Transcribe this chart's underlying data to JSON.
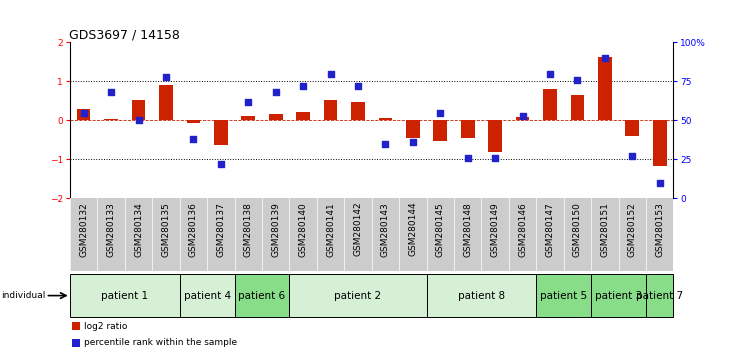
{
  "title": "GDS3697 / 14158",
  "samples": [
    "GSM280132",
    "GSM280133",
    "GSM280134",
    "GSM280135",
    "GSM280136",
    "GSM280137",
    "GSM280138",
    "GSM280139",
    "GSM280140",
    "GSM280141",
    "GSM280142",
    "GSM280143",
    "GSM280144",
    "GSM280145",
    "GSM280148",
    "GSM280149",
    "GSM280146",
    "GSM280147",
    "GSM280150",
    "GSM280151",
    "GSM280152",
    "GSM280153"
  ],
  "log2_ratio": [
    0.28,
    0.04,
    0.52,
    0.92,
    -0.07,
    -0.62,
    0.1,
    0.17,
    0.22,
    0.52,
    0.48,
    0.06,
    -0.45,
    -0.52,
    -0.45,
    -0.8,
    0.08,
    0.8,
    0.65,
    1.62,
    -0.4,
    -1.18
  ],
  "percentile": [
    55,
    68,
    50,
    78,
    38,
    22,
    62,
    68,
    72,
    80,
    72,
    35,
    36,
    55,
    26,
    26,
    53,
    80,
    76,
    90,
    27,
    10
  ],
  "patients": [
    {
      "label": "patient 1",
      "start": 0,
      "end": 4,
      "color": "#d5f0d5"
    },
    {
      "label": "patient 4",
      "start": 4,
      "end": 6,
      "color": "#d5f0d5"
    },
    {
      "label": "patient 6",
      "start": 6,
      "end": 8,
      "color": "#88dd88"
    },
    {
      "label": "patient 2",
      "start": 8,
      "end": 13,
      "color": "#d5f0d5"
    },
    {
      "label": "patient 8",
      "start": 13,
      "end": 17,
      "color": "#d5f0d5"
    },
    {
      "label": "patient 5",
      "start": 17,
      "end": 19,
      "color": "#88dd88"
    },
    {
      "label": "patient 3",
      "start": 19,
      "end": 21,
      "color": "#88dd88"
    },
    {
      "label": "patient 7",
      "start": 21,
      "end": 22,
      "color": "#88dd88"
    }
  ],
  "bar_color": "#cc2200",
  "dot_color": "#2222cc",
  "sample_bg_color": "#cccccc",
  "patient_border_color": "#000000",
  "bg_color": "#ffffff",
  "ylim": [
    -2,
    2
  ],
  "y2lim": [
    0,
    100
  ],
  "y2ticks": [
    0,
    25,
    50,
    75,
    100
  ],
  "y2ticklabels": [
    "0",
    "25",
    "50",
    "75",
    "100%"
  ],
  "yticks": [
    -2,
    -1,
    0,
    1,
    2
  ],
  "dotted_hlines": [
    -1,
    1
  ],
  "bar_width": 0.5,
  "dot_size": 22,
  "legend_items": [
    {
      "label": "log2 ratio",
      "color": "#cc2200"
    },
    {
      "label": "percentile rank within the sample",
      "color": "#2222cc"
    }
  ],
  "individual_label": "individual",
  "title_fontsize": 9,
  "tick_fontsize": 6.5,
  "patient_fontsize": 7.5
}
